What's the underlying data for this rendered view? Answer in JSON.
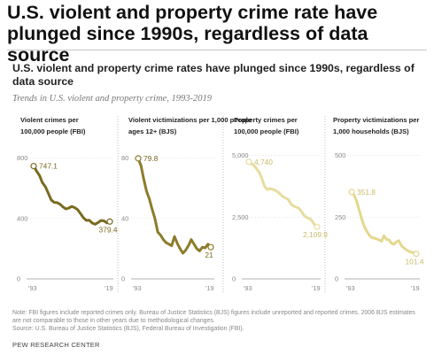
{
  "headline": "U.S. violent and property crime rate have plunged since 1990s, regardless of data source",
  "subtitle": "U.S. violent and property crime rates have plunged since 1990s, regardless of data source",
  "subsubtitle": "Trends in U.S. violent and property crime, 1993-2019",
  "chart_data": [
    {
      "type": "line",
      "title": "Violent crimes per 100,000 people (FBI)",
      "color": "#7a6a1f",
      "ylim": [
        0,
        850
      ],
      "yticks": [
        0,
        400,
        800
      ],
      "ytick_labels": [
        "0",
        "400",
        "800"
      ],
      "x": [
        1993,
        1994,
        1995,
        1996,
        1997,
        1998,
        1999,
        2000,
        2001,
        2002,
        2003,
        2004,
        2005,
        2006,
        2007,
        2008,
        2009,
        2010,
        2011,
        2012,
        2013,
        2014,
        2015,
        2016,
        2017,
        2018,
        2019
      ],
      "y": [
        747.1,
        713.6,
        684.5,
        636.6,
        611.0,
        567.6,
        523.0,
        506.5,
        504.5,
        494.4,
        475.8,
        463.2,
        469.0,
        479.3,
        471.8,
        458.6,
        431.9,
        404.5,
        387.1,
        387.8,
        369.1,
        361.6,
        373.7,
        386.3,
        383.8,
        370.4,
        379.4
      ],
      "labels": {
        "start": "747.1",
        "end": "379.4"
      },
      "xtick_labels": [
        "'93",
        "'19"
      ]
    },
    {
      "type": "line",
      "title": "Violent victimizations per 1,000 people ages 12+ (BJS)",
      "color": "#8c7c2a",
      "ylim": [
        0,
        85
      ],
      "yticks": [
        0,
        40,
        80
      ],
      "ytick_labels": [
        "0",
        "40",
        "80"
      ],
      "x": [
        1993,
        1994,
        1995,
        1996,
        1997,
        1998,
        1999,
        2000,
        2001,
        2002,
        2003,
        2004,
        2005,
        2006,
        2007,
        2008,
        2009,
        2010,
        2011,
        2012,
        2013,
        2014,
        2015,
        2016,
        2017,
        2018,
        2019
      ],
      "y": [
        79.8,
        75.0,
        66.0,
        58.0,
        53.0,
        46.0,
        40.0,
        31.0,
        29.0,
        26.0,
        24.0,
        23.0,
        22.0,
        28.0,
        23.5,
        20.0,
        17.0,
        19.0,
        22.0,
        26.0,
        23.0,
        20.0,
        18.5,
        21.0,
        20.5,
        23.0,
        21.0
      ],
      "labels": {
        "start": "79.8",
        "end": "21"
      },
      "xtick_labels": [
        "'93",
        "'19"
      ]
    },
    {
      "type": "line",
      "title": "Property crimes per 100,000 people (FBI)",
      "color": "#e7dc9e",
      "ylim": [
        0,
        5200
      ],
      "yticks": [
        0,
        2500,
        5000
      ],
      "ytick_labels": [
        "0",
        "2,500",
        "5,000"
      ],
      "x": [
        1993,
        1994,
        1995,
        1996,
        1997,
        1998,
        1999,
        2000,
        2001,
        2002,
        2003,
        2004,
        2005,
        2006,
        2007,
        2008,
        2009,
        2010,
        2011,
        2012,
        2013,
        2014,
        2015,
        2016,
        2017,
        2018,
        2019
      ],
      "y": [
        4740,
        4660,
        4590,
        4450,
        4310,
        4050,
        3740,
        3620,
        3660,
        3630,
        3590,
        3520,
        3430,
        3330,
        3270,
        3220,
        3040,
        2950,
        2910,
        2870,
        2730,
        2580,
        2490,
        2450,
        2360,
        2200,
        2109.9
      ],
      "labels": {
        "start": "4,740",
        "end": "2,109.9"
      },
      "xtick_labels": [
        "'93",
        "'19"
      ]
    },
    {
      "type": "line",
      "title": "Property victimizations per 1,000 households (BJS)",
      "color": "#e4d88f",
      "ylim": [
        0,
        520
      ],
      "yticks": [
        0,
        250,
        500
      ],
      "ytick_labels": [
        "0",
        "250",
        "500"
      ],
      "x": [
        1993,
        1994,
        1995,
        1996,
        1997,
        1998,
        1999,
        2000,
        2001,
        2002,
        2003,
        2004,
        2005,
        2006,
        2007,
        2008,
        2009,
        2010,
        2011,
        2012,
        2013,
        2014,
        2015,
        2016,
        2017,
        2018,
        2019
      ],
      "y": [
        351.8,
        340,
        315,
        280,
        245,
        215,
        195,
        178,
        168,
        165,
        162,
        158,
        152,
        175,
        160,
        158,
        145,
        140,
        150,
        155,
        135,
        125,
        118,
        112,
        108,
        106,
        101.4
      ],
      "labels": {
        "start": "351.8",
        "end": "101.4"
      },
      "xtick_labels": [
        "'93",
        "'19"
      ]
    }
  ],
  "note": "Note: FBI figures include reported crimes only. Bureau of Justice Statistics (BJS) figures include unreported and reported crimes. 2006 BJS estimates are not comparable to those in other years due to methodological changes.",
  "source": "Source: U.S. Bureau of Justice Statistics (BJS), Federal Bureau of Investigation (FBI).",
  "brand": "PEW RESEARCH CENTER"
}
